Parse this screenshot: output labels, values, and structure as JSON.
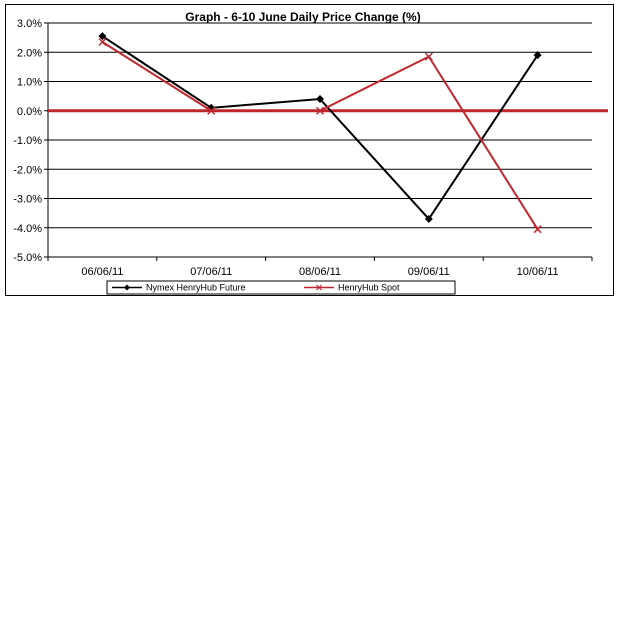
{
  "chart_data": {
    "type": "line",
    "title": "Graph -   6-10 June Daily Price Change (%)",
    "categories": [
      "06/06/11",
      "07/06/11",
      "08/06/11",
      "09/06/11",
      "10/06/11"
    ],
    "series": [
      {
        "name": "Nymex HenryHub Future",
        "color": "#000000",
        "marker": "diamond",
        "values": [
          2.55,
          0.1,
          0.4,
          -3.7,
          1.9
        ]
      },
      {
        "name": "HenryHub Spot",
        "color": "#c0272d",
        "marker": "x",
        "values": [
          2.35,
          0.0,
          0.0,
          1.85,
          -4.05
        ]
      }
    ],
    "y_ticks": [
      "3.0%",
      "2.0%",
      "1.0%",
      "0.0%",
      "-1.0%",
      "-2.0%",
      "-3.0%",
      "-4.0%",
      "-5.0%"
    ],
    "y_tick_values": [
      3,
      2,
      1,
      0,
      -1,
      -2,
      -3,
      -4,
      -5
    ],
    "ylim": [
      -5,
      3
    ],
    "grid": true,
    "zero_line_color": "#c0272d",
    "legend_position": "bottom"
  }
}
